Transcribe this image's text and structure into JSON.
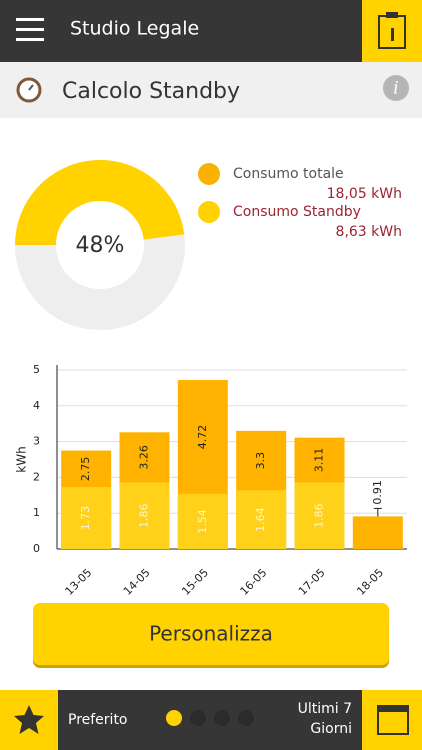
{
  "header": {
    "title": "Studio Legale"
  },
  "section": {
    "title": "Calcolo Standby"
  },
  "summary": {
    "donut": {
      "value": 48,
      "label": "48%",
      "color": "#ffd200",
      "rest_color": "#eeeeee"
    },
    "legend": [
      {
        "name": "Consumo totale",
        "value": "18,05 kWh",
        "color": "#f9b200"
      },
      {
        "name": "Consumo Standby",
        "value": "8,63 kWh",
        "color": "#ffd200"
      }
    ]
  },
  "chart_data": {
    "type": "bar",
    "ylabel": "kWh",
    "categories": [
      "13-05",
      "14-05",
      "15-05",
      "16-05",
      "17-05",
      "18-05"
    ],
    "series": [
      {
        "color": "#ffb300",
        "values": [
          2.75,
          3.26,
          4.72,
          3.3,
          3.11,
          0.91
        ]
      },
      {
        "color": "#ffd11a",
        "values": [
          1.73,
          1.86,
          1.54,
          1.64,
          1.86,
          null
        ]
      }
    ],
    "ylim": [
      0,
      5
    ],
    "yticks": [
      0,
      1,
      2,
      3,
      4,
      5
    ],
    "grid": true
  },
  "button": {
    "label": "Personalizza"
  },
  "footer": {
    "favorite": "Preferito",
    "period": [
      "Ultimi 7",
      "Giorni"
    ]
  }
}
